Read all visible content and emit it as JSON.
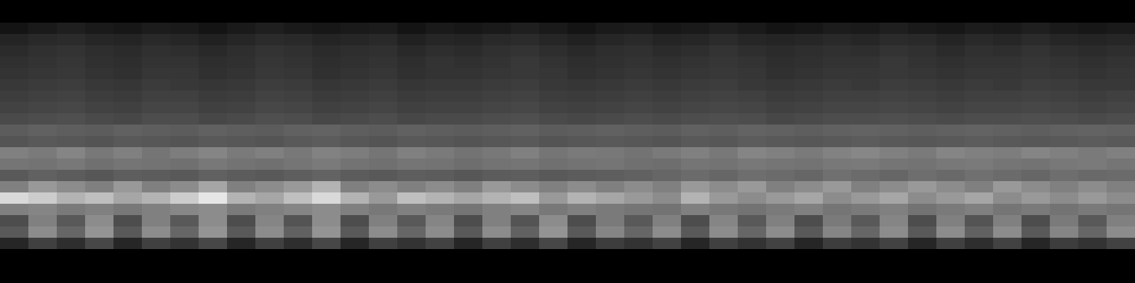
{
  "chart_data": {
    "type": "heatmap",
    "x": [
      0,
      1,
      2,
      3,
      4,
      5,
      6,
      7,
      8,
      9,
      10,
      11,
      12,
      13,
      14,
      15,
      16,
      17,
      18,
      19,
      20,
      21,
      22,
      23,
      24,
      25,
      26,
      27,
      28,
      29,
      30,
      31,
      32,
      33,
      34,
      35,
      36,
      37,
      38,
      39
    ],
    "y": [
      0,
      1,
      2,
      3,
      4,
      5,
      6,
      7,
      8,
      9,
      10,
      11,
      12,
      13,
      14,
      15,
      16,
      17,
      18,
      19
    ],
    "xlim": [
      0,
      40
    ],
    "ylim": [
      0,
      20
    ],
    "zlim": [
      0,
      1
    ],
    "tick_labels": false,
    "grid": false,
    "cells": [
      [
        0.08,
        0.1,
        0.12,
        0.1,
        0.09,
        0.11,
        0.1,
        0.08,
        0.1,
        0.12,
        0.1,
        0.09,
        0.1,
        0.11,
        0.08,
        0.1,
        0.09,
        0.1,
        0.12,
        0.1,
        0.08,
        0.1,
        0.11,
        0.09,
        0.1,
        0.12,
        0.1,
        0.08,
        0.09,
        0.11,
        0.1,
        0.12,
        0.1,
        0.09,
        0.11,
        0.1,
        0.12,
        0.1,
        0.09,
        0.1
      ],
      [
        0.14,
        0.16,
        0.17,
        0.15,
        0.14,
        0.16,
        0.15,
        0.13,
        0.15,
        0.17,
        0.16,
        0.14,
        0.15,
        0.16,
        0.13,
        0.15,
        0.14,
        0.16,
        0.17,
        0.15,
        0.13,
        0.15,
        0.16,
        0.14,
        0.15,
        0.17,
        0.15,
        0.14,
        0.15,
        0.16,
        0.15,
        0.17,
        0.16,
        0.14,
        0.16,
        0.15,
        0.17,
        0.15,
        0.14,
        0.15
      ],
      [
        0.17,
        0.19,
        0.2,
        0.18,
        0.17,
        0.19,
        0.18,
        0.16,
        0.18,
        0.2,
        0.19,
        0.17,
        0.18,
        0.19,
        0.16,
        0.18,
        0.17,
        0.19,
        0.2,
        0.18,
        0.16,
        0.18,
        0.19,
        0.17,
        0.18,
        0.2,
        0.18,
        0.17,
        0.18,
        0.19,
        0.18,
        0.2,
        0.19,
        0.17,
        0.19,
        0.18,
        0.2,
        0.18,
        0.17,
        0.18
      ],
      [
        0.19,
        0.2,
        0.21,
        0.19,
        0.18,
        0.2,
        0.2,
        0.18,
        0.19,
        0.21,
        0.2,
        0.18,
        0.19,
        0.2,
        0.18,
        0.2,
        0.19,
        0.2,
        0.22,
        0.2,
        0.18,
        0.19,
        0.2,
        0.19,
        0.2,
        0.21,
        0.2,
        0.18,
        0.19,
        0.2,
        0.2,
        0.22,
        0.2,
        0.19,
        0.2,
        0.2,
        0.21,
        0.2,
        0.19,
        0.2
      ],
      [
        0.2,
        0.21,
        0.22,
        0.2,
        0.19,
        0.21,
        0.21,
        0.19,
        0.2,
        0.22,
        0.21,
        0.19,
        0.2,
        0.21,
        0.19,
        0.2,
        0.2,
        0.21,
        0.22,
        0.21,
        0.19,
        0.2,
        0.21,
        0.2,
        0.21,
        0.22,
        0.21,
        0.19,
        0.2,
        0.21,
        0.21,
        0.22,
        0.21,
        0.2,
        0.21,
        0.21,
        0.22,
        0.21,
        0.2,
        0.21
      ],
      [
        0.22,
        0.23,
        0.24,
        0.22,
        0.21,
        0.23,
        0.22,
        0.21,
        0.22,
        0.24,
        0.23,
        0.21,
        0.22,
        0.23,
        0.21,
        0.22,
        0.22,
        0.23,
        0.24,
        0.22,
        0.21,
        0.22,
        0.23,
        0.22,
        0.23,
        0.24,
        0.22,
        0.21,
        0.22,
        0.23,
        0.22,
        0.24,
        0.23,
        0.22,
        0.23,
        0.22,
        0.24,
        0.23,
        0.22,
        0.22
      ],
      [
        0.24,
        0.25,
        0.26,
        0.24,
        0.23,
        0.25,
        0.25,
        0.23,
        0.24,
        0.26,
        0.25,
        0.23,
        0.24,
        0.25,
        0.23,
        0.24,
        0.24,
        0.25,
        0.26,
        0.24,
        0.23,
        0.24,
        0.25,
        0.24,
        0.25,
        0.26,
        0.25,
        0.23,
        0.24,
        0.25,
        0.25,
        0.26,
        0.25,
        0.24,
        0.25,
        0.25,
        0.26,
        0.25,
        0.24,
        0.25
      ],
      [
        0.26,
        0.27,
        0.28,
        0.26,
        0.25,
        0.27,
        0.27,
        0.25,
        0.26,
        0.28,
        0.27,
        0.25,
        0.26,
        0.27,
        0.25,
        0.26,
        0.26,
        0.27,
        0.28,
        0.26,
        0.25,
        0.26,
        0.27,
        0.26,
        0.27,
        0.28,
        0.27,
        0.25,
        0.26,
        0.27,
        0.27,
        0.28,
        0.27,
        0.26,
        0.27,
        0.27,
        0.28,
        0.27,
        0.26,
        0.27
      ],
      [
        0.29,
        0.3,
        0.31,
        0.29,
        0.28,
        0.3,
        0.3,
        0.28,
        0.29,
        0.31,
        0.3,
        0.28,
        0.29,
        0.3,
        0.28,
        0.29,
        0.29,
        0.3,
        0.31,
        0.29,
        0.28,
        0.29,
        0.3,
        0.29,
        0.3,
        0.31,
        0.3,
        0.28,
        0.29,
        0.3,
        0.3,
        0.31,
        0.3,
        0.29,
        0.3,
        0.3,
        0.31,
        0.3,
        0.29,
        0.3
      ],
      [
        0.36,
        0.38,
        0.37,
        0.36,
        0.38,
        0.37,
        0.36,
        0.38,
        0.37,
        0.36,
        0.38,
        0.39,
        0.37,
        0.36,
        0.38,
        0.37,
        0.36,
        0.37,
        0.38,
        0.36,
        0.37,
        0.38,
        0.37,
        0.36,
        0.38,
        0.37,
        0.39,
        0.38,
        0.37,
        0.38,
        0.39,
        0.38,
        0.37,
        0.38,
        0.39,
        0.38,
        0.37,
        0.38,
        0.39,
        0.38
      ],
      [
        0.33,
        0.35,
        0.34,
        0.33,
        0.35,
        0.34,
        0.33,
        0.35,
        0.34,
        0.33,
        0.35,
        0.36,
        0.34,
        0.33,
        0.35,
        0.34,
        0.33,
        0.34,
        0.35,
        0.33,
        0.34,
        0.35,
        0.34,
        0.33,
        0.35,
        0.34,
        0.36,
        0.35,
        0.34,
        0.35,
        0.36,
        0.35,
        0.34,
        0.35,
        0.36,
        0.35,
        0.34,
        0.35,
        0.36,
        0.35
      ],
      [
        0.5,
        0.48,
        0.52,
        0.47,
        0.5,
        0.46,
        0.49,
        0.52,
        0.48,
        0.5,
        0.47,
        0.51,
        0.49,
        0.46,
        0.5,
        0.48,
        0.45,
        0.47,
        0.5,
        0.46,
        0.48,
        0.47,
        0.45,
        0.48,
        0.5,
        0.47,
        0.52,
        0.5,
        0.48,
        0.51,
        0.53,
        0.5,
        0.48,
        0.52,
        0.5,
        0.49,
        0.52,
        0.5,
        0.48,
        0.5
      ],
      [
        0.46,
        0.45,
        0.47,
        0.44,
        0.46,
        0.45,
        0.44,
        0.47,
        0.45,
        0.44,
        0.46,
        0.48,
        0.45,
        0.44,
        0.46,
        0.45,
        0.43,
        0.45,
        0.46,
        0.44,
        0.45,
        0.46,
        0.44,
        0.43,
        0.46,
        0.45,
        0.47,
        0.46,
        0.45,
        0.47,
        0.48,
        0.46,
        0.45,
        0.47,
        0.48,
        0.46,
        0.45,
        0.47,
        0.48,
        0.46
      ],
      [
        0.35,
        0.38,
        0.36,
        0.34,
        0.37,
        0.36,
        0.35,
        0.38,
        0.36,
        0.35,
        0.37,
        0.39,
        0.36,
        0.35,
        0.37,
        0.36,
        0.34,
        0.36,
        0.37,
        0.35,
        0.36,
        0.37,
        0.38,
        0.4,
        0.42,
        0.4,
        0.43,
        0.42,
        0.4,
        0.44,
        0.42,
        0.4,
        0.43,
        0.41,
        0.44,
        0.42,
        0.4,
        0.43,
        0.41,
        0.42
      ],
      [
        0.5,
        0.6,
        0.55,
        0.5,
        0.6,
        0.5,
        0.55,
        0.65,
        0.5,
        0.55,
        0.6,
        0.7,
        0.5,
        0.55,
        0.5,
        0.55,
        0.5,
        0.6,
        0.55,
        0.5,
        0.55,
        0.5,
        0.55,
        0.5,
        0.6,
        0.55,
        0.6,
        0.5,
        0.55,
        0.6,
        0.5,
        0.55,
        0.6,
        0.55,
        0.5,
        0.6,
        0.55,
        0.5,
        0.55,
        0.5
      ],
      [
        0.85,
        0.8,
        0.7,
        0.75,
        0.65,
        0.7,
        0.8,
        0.9,
        0.7,
        0.65,
        0.75,
        0.85,
        0.7,
        0.6,
        0.75,
        0.7,
        0.65,
        0.7,
        0.75,
        0.6,
        0.7,
        0.65,
        0.6,
        0.55,
        0.7,
        0.6,
        0.55,
        0.6,
        0.65,
        0.55,
        0.6,
        0.65,
        0.55,
        0.6,
        0.65,
        0.55,
        0.6,
        0.55,
        0.6,
        0.55
      ],
      [
        0.5,
        0.52,
        0.48,
        0.5,
        0.47,
        0.5,
        0.53,
        0.55,
        0.48,
        0.5,
        0.52,
        0.55,
        0.5,
        0.47,
        0.5,
        0.48,
        0.46,
        0.5,
        0.52,
        0.47,
        0.5,
        0.48,
        0.46,
        0.45,
        0.5,
        0.47,
        0.45,
        0.48,
        0.5,
        0.46,
        0.48,
        0.5,
        0.45,
        0.48,
        0.5,
        0.46,
        0.48,
        0.45,
        0.48,
        0.46
      ],
      [
        0.3,
        0.5,
        0.35,
        0.55,
        0.3,
        0.5,
        0.35,
        0.55,
        0.3,
        0.52,
        0.33,
        0.55,
        0.3,
        0.5,
        0.35,
        0.52,
        0.3,
        0.5,
        0.33,
        0.55,
        0.3,
        0.48,
        0.35,
        0.5,
        0.3,
        0.52,
        0.35,
        0.5,
        0.3,
        0.48,
        0.35,
        0.52,
        0.3,
        0.5,
        0.33,
        0.5,
        0.3,
        0.48,
        0.35,
        0.5
      ],
      [
        0.35,
        0.55,
        0.4,
        0.58,
        0.35,
        0.55,
        0.4,
        0.58,
        0.35,
        0.55,
        0.38,
        0.58,
        0.35,
        0.55,
        0.4,
        0.55,
        0.35,
        0.55,
        0.38,
        0.58,
        0.35,
        0.52,
        0.4,
        0.55,
        0.35,
        0.55,
        0.4,
        0.55,
        0.35,
        0.52,
        0.4,
        0.55,
        0.35,
        0.55,
        0.38,
        0.55,
        0.35,
        0.52,
        0.4,
        0.55
      ],
      [
        0.15,
        0.25,
        0.18,
        0.28,
        0.15,
        0.25,
        0.2,
        0.28,
        0.15,
        0.25,
        0.18,
        0.28,
        0.15,
        0.25,
        0.2,
        0.26,
        0.15,
        0.25,
        0.18,
        0.28,
        0.15,
        0.24,
        0.2,
        0.26,
        0.15,
        0.25,
        0.2,
        0.26,
        0.15,
        0.24,
        0.2,
        0.26,
        0.15,
        0.25,
        0.18,
        0.26,
        0.15,
        0.24,
        0.2,
        0.26
      ]
    ]
  }
}
